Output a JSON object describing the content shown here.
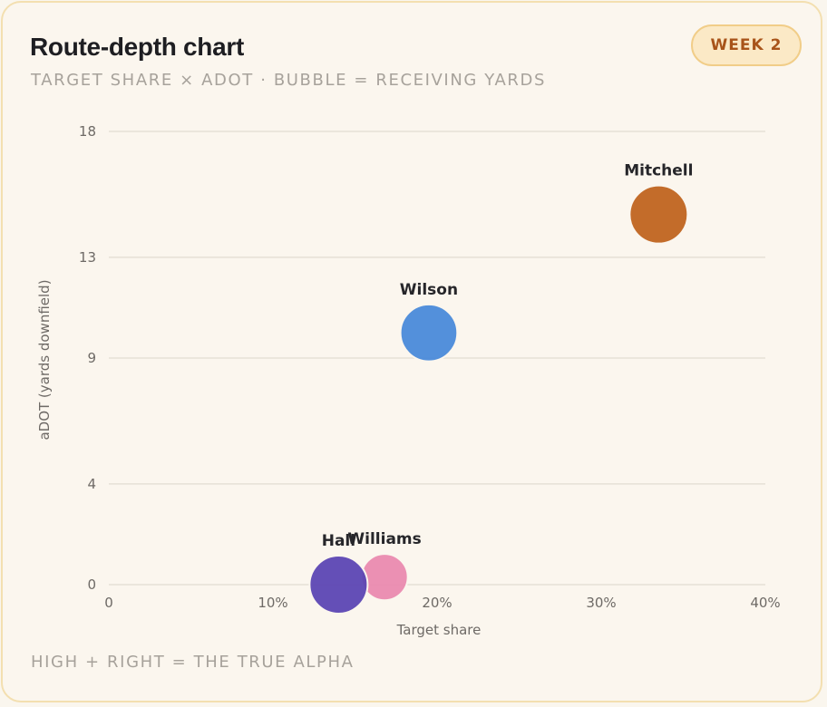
{
  "header": {
    "title": "Route-depth chart",
    "subtitle": "TARGET SHARE × ADOT · BUBBLE = RECEIVING YARDS",
    "badge": "WEEK 2"
  },
  "footer": {
    "note": "HIGH + RIGHT = THE TRUE ALPHA"
  },
  "chart_data": {
    "type": "scatter",
    "title": "Route-depth chart",
    "subtitle": "TARGET SHARE × ADOT · BUBBLE = RECEIVING YARDS",
    "xlabel": "Target share",
    "ylabel": "aDOT (yards downfield)",
    "xlim": [
      0,
      40
    ],
    "ylim": [
      0,
      18
    ],
    "x_ticks": [
      0,
      10,
      20,
      30,
      40
    ],
    "x_tick_labels": [
      "0",
      "10%",
      "20%",
      "30%",
      "40%"
    ],
    "y_ticks": [
      0,
      4,
      9,
      13,
      18
    ],
    "y_tick_labels": [
      "0",
      "4",
      "9",
      "13",
      "18"
    ],
    "grid": "horizontal",
    "points": [
      {
        "name": "Mitchell",
        "x": 33.5,
        "y": 14.7,
        "size": 1.0,
        "color": "#c0641f"
      },
      {
        "name": "Wilson",
        "x": 19.5,
        "y": 10.0,
        "size": 0.98,
        "color": "#4a8ad9"
      },
      {
        "name": "Williams",
        "x": 16.8,
        "y": 0.3,
        "size": 0.8,
        "color": "#ea8aaf"
      },
      {
        "name": "Hall",
        "x": 14.0,
        "y": 0.0,
        "size": 1.0,
        "color": "#5c46b3"
      }
    ]
  }
}
